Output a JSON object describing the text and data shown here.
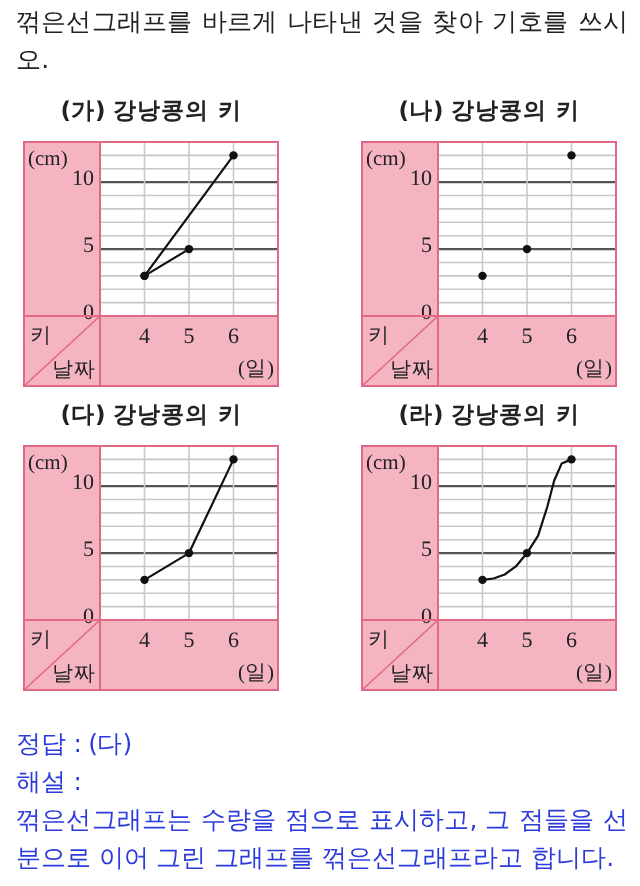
{
  "chart_data": [
    {
      "type": "line",
      "title": "(가) 강낭콩의 키",
      "xlabel": "날짜",
      "ylabel": "키",
      "annotations": [
        "(cm)",
        "(일)",
        "꺾은선그래프를 바르게 나타낸 것을 찾아 기호를 쓰시오."
      ],
      "xlim": [
        3,
        7
      ],
      "xticks": [
        4,
        5,
        6
      ],
      "ylim": [
        0,
        13
      ],
      "yticks": [
        0,
        {
          "value": 1,
          "label": null
        },
        {
          "value": 2,
          "label": null
        },
        {
          "value": 3,
          "label": null
        },
        {
          "value": 4,
          "label": null
        },
        5,
        {
          "value": 6,
          "label": null
        },
        {
          "value": 7,
          "label": null
        },
        {
          "value": 8,
          "label": null
        },
        {
          "value": 9,
          "label": null
        },
        10,
        {
          "value": 11,
          "label": null
        },
        {
          "value": 12,
          "label": null
        }
      ],
      "grid": true,
      "marker": "circle",
      "series": [
        {
          "color": "#111111",
          "x": [
            4,
            6
          ],
          "values": [
            3,
            12
          ]
        },
        {
          "color": "#111111",
          "x": [
            4,
            5
          ],
          "values": [
            3,
            5
          ]
        }
      ]
    },
    {
      "type": "scatter",
      "title": "(나) 강낭콩의 키",
      "xlabel": "날짜",
      "ylabel": "키",
      "annotations": [
        "(cm)",
        "(일)"
      ],
      "xlim": [
        3,
        7
      ],
      "xticks": [
        4,
        5,
        6
      ],
      "ylim": [
        0,
        13
      ],
      "yticks": [
        0,
        {
          "value": 1,
          "label": null
        },
        {
          "value": 2,
          "label": null
        },
        {
          "value": 3,
          "label": null
        },
        {
          "value": 4,
          "label": null
        },
        5,
        {
          "value": 6,
          "label": null
        },
        {
          "value": 7,
          "label": null
        },
        {
          "value": 8,
          "label": null
        },
        {
          "value": 9,
          "label": null
        },
        10,
        {
          "value": 11,
          "label": null
        },
        {
          "value": 12,
          "label": null
        }
      ],
      "grid": true,
      "marker": "circle",
      "series": [
        {
          "color": "#111111",
          "x": [
            4,
            5,
            6
          ],
          "values": [
            3,
            5,
            12
          ]
        }
      ]
    },
    {
      "type": "line",
      "title": "(다) 강낭콩의 키",
      "xlabel": "날짜",
      "ylabel": "키",
      "annotations": [
        "(cm)",
        "(일)"
      ],
      "xlim": [
        3,
        7
      ],
      "xticks": [
        4,
        5,
        6
      ],
      "ylim": [
        0,
        13
      ],
      "yticks": [
        0,
        {
          "value": 1,
          "label": null
        },
        {
          "value": 2,
          "label": null
        },
        {
          "value": 3,
          "label": null
        },
        {
          "value": 4,
          "label": null
        },
        5,
        {
          "value": 6,
          "label": null
        },
        {
          "value": 7,
          "label": null
        },
        {
          "value": 8,
          "label": null
        },
        {
          "value": 9,
          "label": null
        },
        10,
        {
          "value": 11,
          "label": null
        },
        {
          "value": 12,
          "label": null
        }
      ],
      "grid": true,
      "marker": "circle",
      "series": [
        {
          "color": "#111111",
          "x": [
            4,
            5,
            6
          ],
          "values": [
            3,
            5,
            12
          ]
        }
      ]
    },
    {
      "type": "line",
      "title": "(라) 강낭콩의 키",
      "xlabel": "날짜",
      "ylabel": "키",
      "annotations": [
        "(cm)",
        "(일)",
        "정답 : (다)",
        "해설 :",
        "꺾은선그래프는 수량을 점으로 표시하고, 그 점들을 선분으로 이어 그린 그래프를 꺾은선그래프라고 합니다."
      ],
      "xlim": [
        3,
        7
      ],
      "xticks": [
        4,
        5,
        6
      ],
      "ylim": [
        0,
        13
      ],
      "yticks": [
        0,
        {
          "value": 1,
          "label": null
        },
        {
          "value": 2,
          "label": null
        },
        {
          "value": 3,
          "label": null
        },
        {
          "value": 4,
          "label": null
        },
        5,
        {
          "value": 6,
          "label": null
        },
        {
          "value": 7,
          "label": null
        },
        {
          "value": 8,
          "label": null
        },
        {
          "value": 9,
          "label": null
        },
        10,
        {
          "value": 11,
          "label": null
        },
        {
          "value": 12,
          "label": null
        }
      ],
      "grid": true,
      "marker": "circle",
      "series": [
        {
          "color": "#111111",
          "marker": "none",
          "x": [
            4,
            4.25,
            4.5,
            4.75,
            5,
            5.25,
            5.46,
            5.61,
            5.78,
            6
          ],
          "values": [
            3,
            3.1,
            3.4,
            4,
            5,
            6.3,
            8.5,
            10.4,
            11.7,
            12
          ]
        },
        {
          "type": "scatter",
          "color": "#111111",
          "x": [
            4,
            5,
            6
          ],
          "values": [
            3,
            5,
            12
          ]
        }
      ]
    }
  ]
}
